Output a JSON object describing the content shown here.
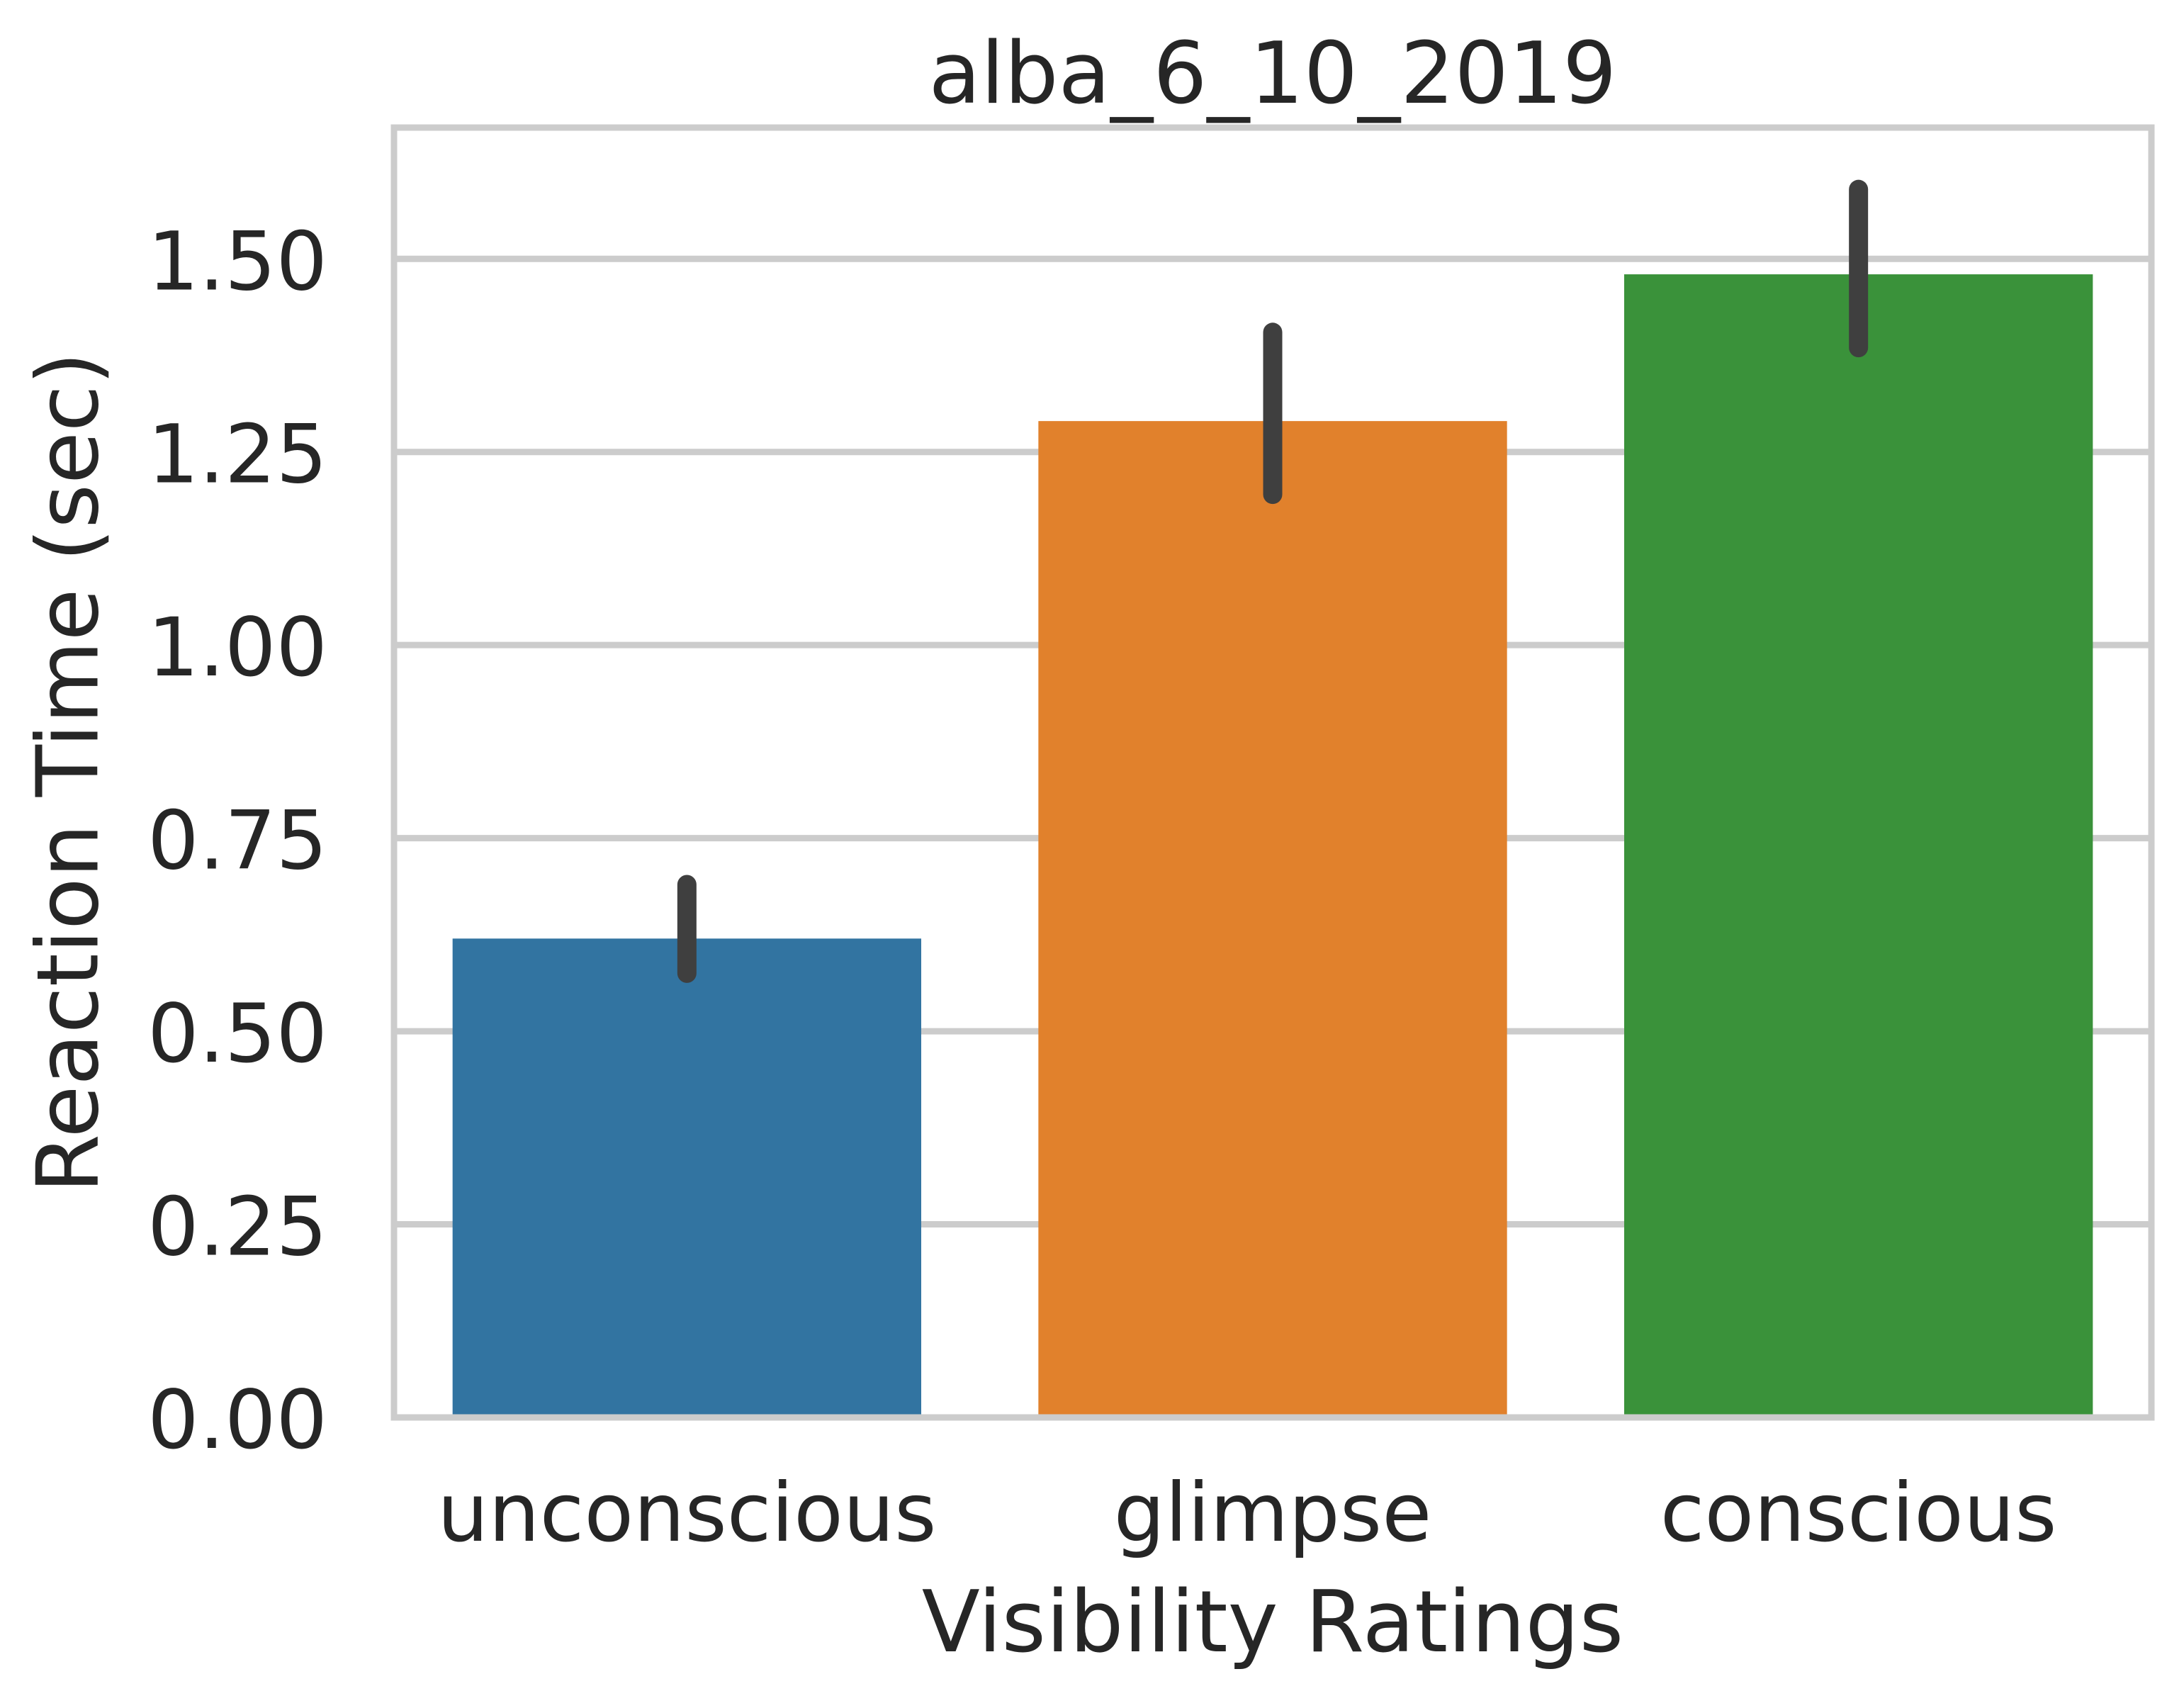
{
  "chart_data": {
    "type": "bar",
    "title": "alba_6_10_2019",
    "xlabel": "Visibility Ratings",
    "ylabel": "Reaction Time (sec)",
    "categories": [
      "unconscious",
      "glimpse",
      "conscious"
    ],
    "values": [
      0.62,
      1.29,
      1.48
    ],
    "error_bars": [
      {
        "low": 0.575,
        "high": 0.69
      },
      {
        "low": 1.195,
        "high": 1.405
      },
      {
        "low": 1.385,
        "high": 1.59
      }
    ],
    "bar_colors": [
      "#3274a1",
      "#e1812c",
      "#3a923a"
    ],
    "error_bar_color": "#3f3f3f",
    "grid_color": "#cccccc",
    "ylim": [
      0,
      1.67
    ],
    "yticks": [
      0.0,
      0.25,
      0.5,
      0.75,
      1.0,
      1.25,
      1.5
    ],
    "ytick_labels": [
      "0.00",
      "0.25",
      "0.50",
      "0.75",
      "1.00",
      "1.25",
      "1.50"
    ],
    "grid": "horizontal",
    "legend": "none"
  }
}
